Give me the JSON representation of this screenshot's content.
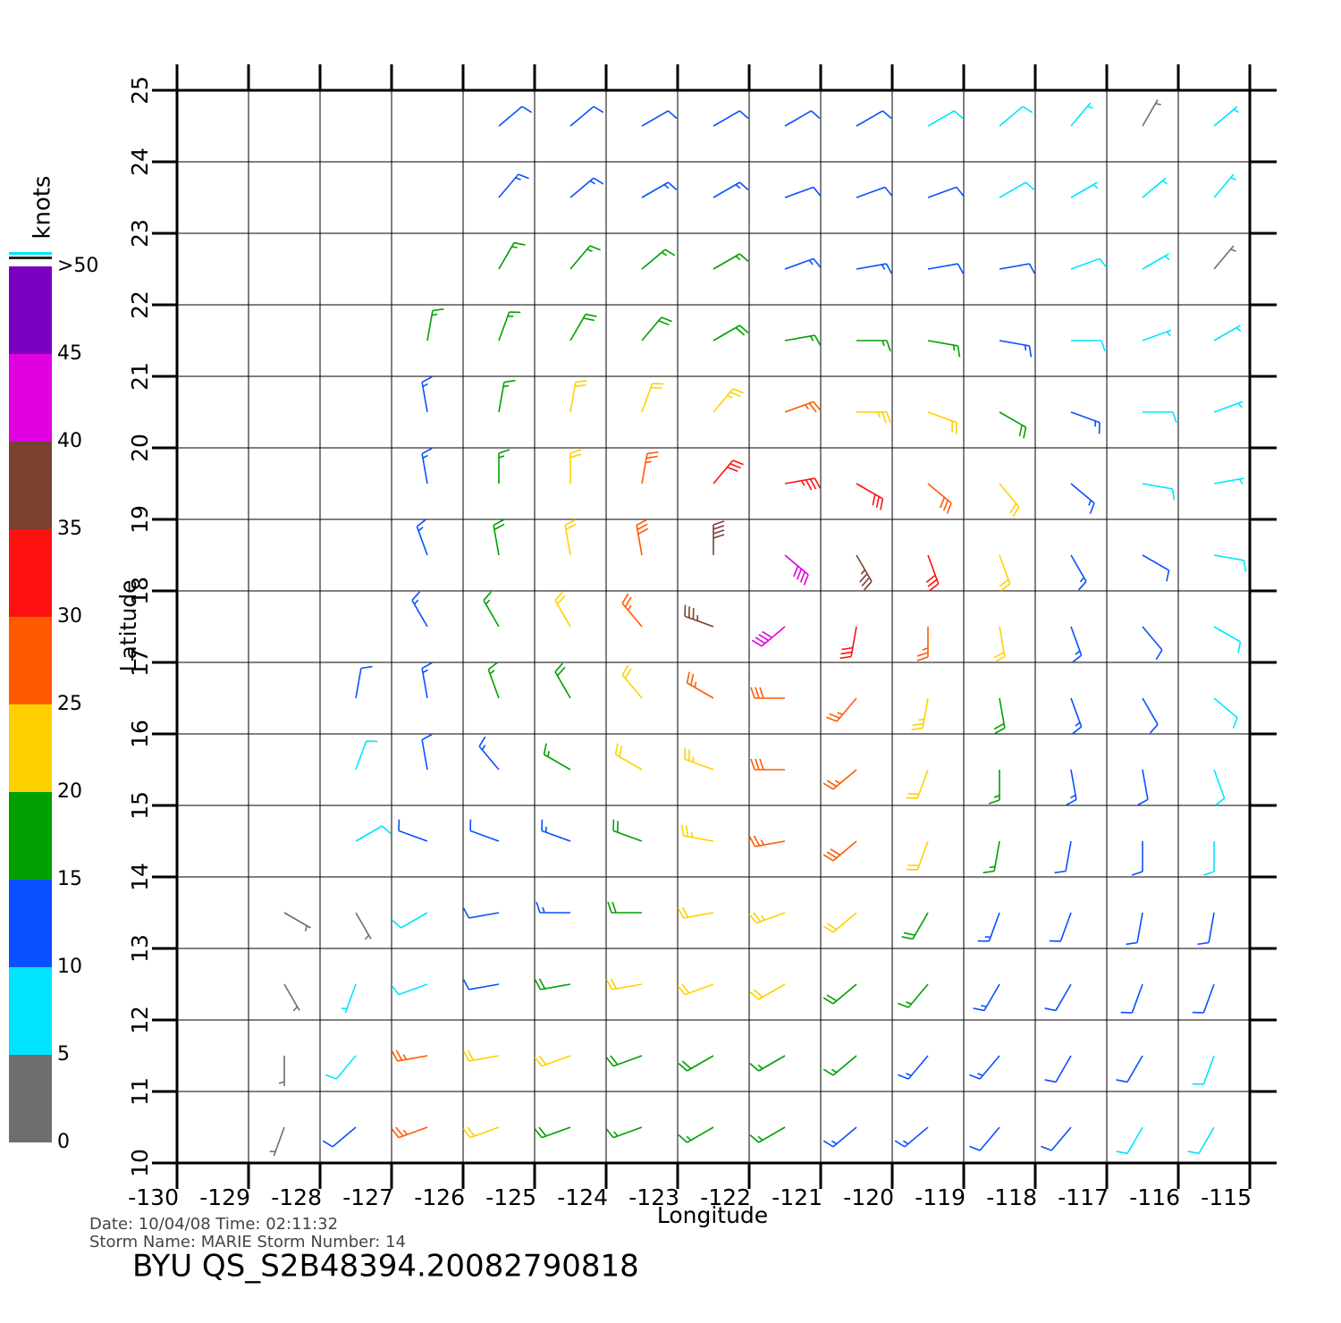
{
  "chart_data": {
    "type": "barb",
    "xlabel": "Longitude",
    "ylabel": "Latitude",
    "xlim": [
      -130,
      -115
    ],
    "ylim": [
      10,
      25
    ],
    "xticks": [
      -130,
      -129,
      -128,
      -127,
      -126,
      -125,
      -124,
      -123,
      -122,
      -121,
      -120,
      -119,
      -118,
      -117,
      -116,
      -115
    ],
    "yticks": [
      10,
      11,
      12,
      13,
      14,
      15,
      16,
      17,
      18,
      19,
      20,
      21,
      22,
      23,
      24,
      25
    ],
    "grid": true,
    "colorbar": {
      "label": "knots",
      "lim": [
        0,
        50
      ],
      "ticks": [
        0,
        5,
        10,
        15,
        20,
        25,
        30,
        35,
        40,
        45,
        {
          "value": 50,
          "label": ">50"
        }
      ],
      "colors": [
        "#6e6e6e",
        "#00e5ff",
        "#0a50ff",
        "#00a000",
        "#ffd000",
        "#ff5a00",
        "#ff1010",
        "#7a4030",
        "#e000e0",
        "#7a00c0"
      ]
    },
    "wind": {
      "lon": [
        -129.5,
        -128.5,
        -127.5,
        -126.5,
        -125.5,
        -124.5,
        -123.5,
        -122.5,
        -121.5,
        -120.5,
        -119.5,
        -118.5,
        -117.5,
        -116.5,
        -115.5
      ],
      "lat": [
        10.5,
        11.5,
        12.5,
        13.5,
        14.5,
        15.5,
        16.5,
        17.5,
        18.5,
        19.5,
        20.5,
        21.5,
        22.5,
        23.5,
        24.5
      ],
      "speed": [
        [
          null,
          4,
          10,
          25,
          22,
          18,
          17,
          17,
          16,
          14,
          13,
          12,
          11,
          9,
          8
        ],
        [
          null,
          4,
          9,
          26,
          22,
          20,
          18,
          18,
          17,
          16,
          14,
          13,
          12,
          10,
          9
        ],
        [
          null,
          4,
          6,
          9,
          12,
          18,
          20,
          22,
          20,
          18,
          15,
          13,
          12,
          11,
          10
        ],
        [
          null,
          3,
          4,
          8,
          11,
          14,
          18,
          22,
          24,
          22,
          18,
          14,
          12,
          11,
          10
        ],
        [
          null,
          null,
          8,
          10,
          12,
          14,
          18,
          24,
          25,
          28,
          20,
          15,
          12,
          11,
          9
        ],
        [
          null,
          null,
          9,
          11,
          13,
          16,
          20,
          24,
          28,
          26,
          22,
          17,
          13,
          11,
          8
        ],
        [
          null,
          null,
          11,
          13,
          15,
          18,
          22,
          26,
          28,
          26,
          24,
          18,
          13,
          10,
          8
        ],
        [
          null,
          null,
          null,
          14,
          17,
          20,
          26,
          36,
          40,
          30,
          26,
          20,
          14,
          10,
          8
        ],
        [
          null,
          null,
          null,
          14,
          18,
          22,
          28,
          38,
          42,
          36,
          30,
          22,
          14,
          10,
          8
        ],
        [
          null,
          null,
          null,
          14,
          17,
          21,
          26,
          32,
          34,
          32,
          28,
          20,
          13,
          9,
          7
        ],
        [
          null,
          null,
          null,
          14,
          17,
          20,
          22,
          24,
          26,
          24,
          22,
          18,
          14,
          9,
          6
        ],
        [
          null,
          null,
          null,
          15,
          17,
          18,
          18,
          18,
          17,
          16,
          15,
          13,
          9,
          6,
          5
        ],
        [
          null,
          null,
          null,
          null,
          17,
          17,
          16,
          15,
          14,
          13,
          12,
          10,
          8,
          6,
          4
        ],
        [
          null,
          null,
          null,
          null,
          14,
          14,
          13,
          13,
          12,
          12,
          11,
          9,
          7,
          5,
          5
        ],
        [
          null,
          null,
          null,
          null,
          12,
          12,
          12,
          11,
          11,
          10,
          9,
          8,
          6,
          4,
          7
        ]
      ],
      "direction": [
        [
          null,
          200,
          230,
          250,
          250,
          250,
          250,
          240,
          240,
          230,
          230,
          220,
          220,
          210,
          210
        ],
        [
          null,
          180,
          220,
          260,
          260,
          250,
          250,
          240,
          240,
          230,
          220,
          220,
          210,
          210,
          200
        ],
        [
          null,
          150,
          200,
          250,
          260,
          260,
          260,
          250,
          240,
          230,
          220,
          210,
          210,
          200,
          200
        ],
        [
          null,
          120,
          150,
          240,
          260,
          270,
          270,
          260,
          250,
          230,
          210,
          200,
          200,
          190,
          190
        ],
        [
          null,
          null,
          60,
          290,
          290,
          290,
          290,
          280,
          260,
          230,
          200,
          190,
          190,
          180,
          180
        ],
        [
          null,
          null,
          20,
          350,
          320,
          300,
          300,
          290,
          270,
          230,
          200,
          180,
          170,
          170,
          160
        ],
        [
          null,
          null,
          10,
          350,
          340,
          330,
          320,
          300,
          270,
          220,
          190,
          170,
          160,
          150,
          130
        ],
        [
          null,
          null,
          null,
          330,
          330,
          330,
          320,
          290,
          230,
          190,
          180,
          170,
          160,
          140,
          120
        ],
        [
          null,
          null,
          null,
          340,
          350,
          350,
          350,
          0,
          130,
          150,
          160,
          160,
          150,
          120,
          100
        ],
        [
          null,
          null,
          null,
          350,
          0,
          0,
          10,
          40,
          80,
          120,
          130,
          140,
          130,
          100,
          80
        ],
        [
          null,
          null,
          null,
          350,
          10,
          10,
          20,
          40,
          70,
          90,
          110,
          120,
          110,
          90,
          70
        ],
        [
          null,
          null,
          null,
          10,
          20,
          30,
          40,
          60,
          80,
          90,
          100,
          100,
          90,
          70,
          60
        ],
        [
          null,
          null,
          null,
          null,
          30,
          40,
          50,
          60,
          70,
          80,
          80,
          80,
          70,
          60,
          40
        ],
        [
          null,
          null,
          null,
          null,
          40,
          50,
          60,
          60,
          70,
          70,
          70,
          60,
          60,
          50,
          40
        ],
        [
          null,
          null,
          null,
          null,
          50,
          50,
          60,
          60,
          60,
          60,
          60,
          50,
          40,
          30,
          50
        ]
      ]
    },
    "annotations": [
      "Date: 10/04/08   Time: 02:11:32",
      "Storm Name: MARIE   Storm Number: 14",
      "BYU QS_S2B48394.20082790818"
    ]
  }
}
